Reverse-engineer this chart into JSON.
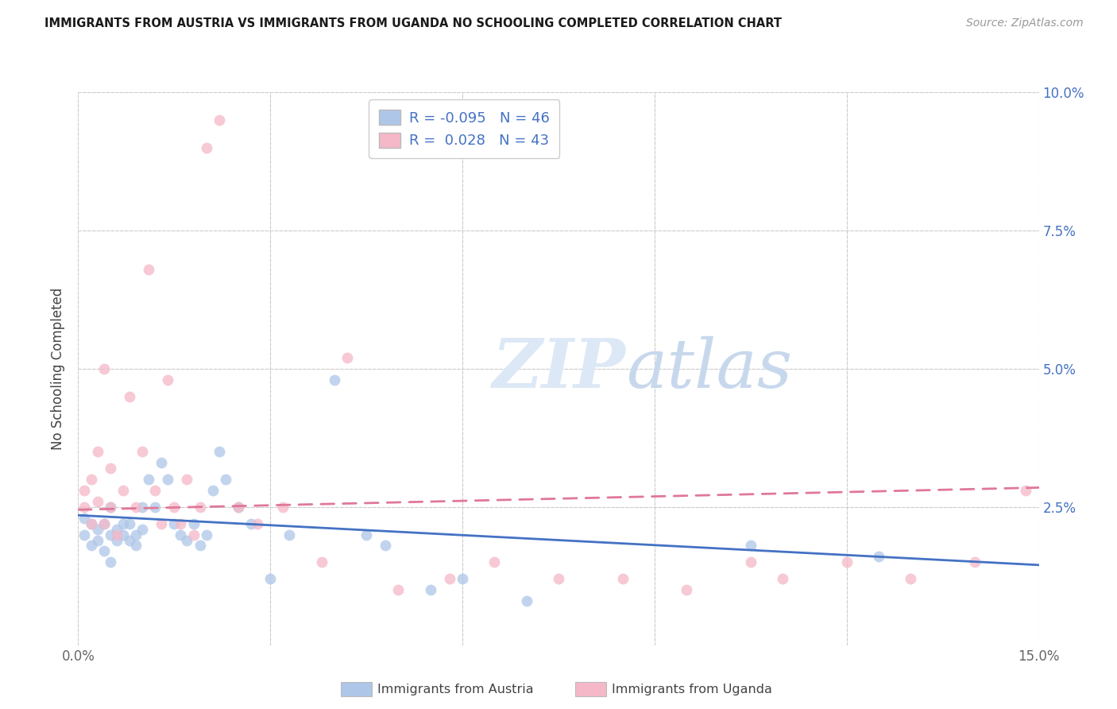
{
  "title": "IMMIGRANTS FROM AUSTRIA VS IMMIGRANTS FROM UGANDA NO SCHOOLING COMPLETED CORRELATION CHART",
  "source": "Source: ZipAtlas.com",
  "ylabel": "No Schooling Completed",
  "xlim": [
    0.0,
    0.15
  ],
  "ylim": [
    0.0,
    0.1
  ],
  "austria_R": -0.095,
  "austria_N": 46,
  "uganda_R": 0.028,
  "uganda_N": 43,
  "austria_color": "#aec6e8",
  "austria_edge": "#aec6e8",
  "uganda_color": "#f5b8c8",
  "uganda_edge": "#f5b8c8",
  "austria_line_color": "#4472c4",
  "uganda_line_color": "#e07898",
  "legend_austria_label": "Immigrants from Austria",
  "legend_uganda_label": "Immigrants from Uganda",
  "background_color": "#ffffff",
  "grid_color": "#cccccc",
  "watermark_zip": "ZIP",
  "watermark_atlas": "atlas",
  "title_color": "#1a1a1a",
  "source_color": "#999999",
  "axis_label_color": "#444444",
  "tick_color": "#666666",
  "right_tick_color": "#4472c4",
  "austria_x": [
    0.001,
    0.001,
    0.002,
    0.002,
    0.003,
    0.003,
    0.004,
    0.004,
    0.005,
    0.005,
    0.005,
    0.006,
    0.006,
    0.007,
    0.007,
    0.008,
    0.008,
    0.009,
    0.009,
    0.01,
    0.01,
    0.011,
    0.012,
    0.013,
    0.014,
    0.015,
    0.016,
    0.017,
    0.018,
    0.019,
    0.02,
    0.021,
    0.022,
    0.023,
    0.025,
    0.027,
    0.03,
    0.033,
    0.04,
    0.045,
    0.048,
    0.055,
    0.06,
    0.07,
    0.105,
    0.125
  ],
  "austria_y": [
    0.02,
    0.023,
    0.018,
    0.022,
    0.019,
    0.021,
    0.017,
    0.022,
    0.02,
    0.015,
    0.025,
    0.021,
    0.019,
    0.022,
    0.02,
    0.019,
    0.022,
    0.02,
    0.018,
    0.021,
    0.025,
    0.03,
    0.025,
    0.033,
    0.03,
    0.022,
    0.02,
    0.019,
    0.022,
    0.018,
    0.02,
    0.028,
    0.035,
    0.03,
    0.025,
    0.022,
    0.012,
    0.02,
    0.048,
    0.02,
    0.018,
    0.01,
    0.012,
    0.008,
    0.018,
    0.016
  ],
  "uganda_x": [
    0.001,
    0.001,
    0.002,
    0.002,
    0.003,
    0.003,
    0.004,
    0.004,
    0.005,
    0.005,
    0.006,
    0.007,
    0.008,
    0.009,
    0.01,
    0.011,
    0.012,
    0.013,
    0.014,
    0.015,
    0.016,
    0.017,
    0.018,
    0.019,
    0.02,
    0.022,
    0.025,
    0.028,
    0.032,
    0.038,
    0.042,
    0.05,
    0.058,
    0.065,
    0.075,
    0.085,
    0.095,
    0.105,
    0.11,
    0.12,
    0.13,
    0.14,
    0.148
  ],
  "uganda_y": [
    0.025,
    0.028,
    0.022,
    0.03,
    0.026,
    0.035,
    0.022,
    0.05,
    0.025,
    0.032,
    0.02,
    0.028,
    0.045,
    0.025,
    0.035,
    0.068,
    0.028,
    0.022,
    0.048,
    0.025,
    0.022,
    0.03,
    0.02,
    0.025,
    0.09,
    0.095,
    0.025,
    0.022,
    0.025,
    0.015,
    0.052,
    0.01,
    0.012,
    0.015,
    0.012,
    0.012,
    0.01,
    0.015,
    0.012,
    0.015,
    0.012,
    0.015,
    0.028
  ],
  "austria_line_x": [
    0.0,
    0.15
  ],
  "austria_line_y_start": 0.0235,
  "austria_line_y_end": 0.0145,
  "uganda_line_x": [
    0.0,
    0.15
  ],
  "uganda_line_y_start": 0.0245,
  "uganda_line_y_end": 0.0285
}
